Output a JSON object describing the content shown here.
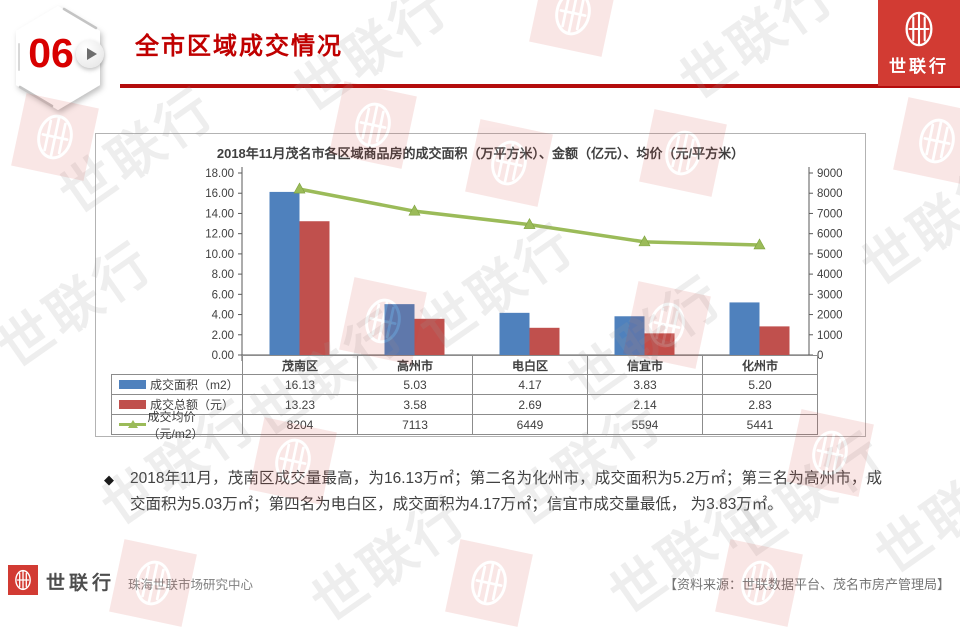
{
  "slide": {
    "number": "06",
    "title": "全市区域成交情况"
  },
  "brand": {
    "name": "世联行",
    "logo_color": "#d23b33"
  },
  "watermark": {
    "text": "世联行"
  },
  "chart_data": {
    "type": "bar",
    "subtype": "combo-bar-line",
    "title": "2018年11月茂名市各区域商品房的成交面积（万平方米）、金额（亿元）、均价（元/平方米）",
    "categories": [
      "茂南区",
      "高州市",
      "电白区",
      "信宜市",
      "化州市"
    ],
    "series": [
      {
        "name": "成交面积（m2）",
        "type": "bar",
        "axis": "left",
        "color": "#4f81bd",
        "decimals": 2,
        "values": [
          16.13,
          5.03,
          4.17,
          3.83,
          5.2
        ]
      },
      {
        "name": "成交总额（元）",
        "type": "bar",
        "axis": "left",
        "color": "#c0504d",
        "decimals": 2,
        "values": [
          13.23,
          3.58,
          2.69,
          2.14,
          2.83
        ]
      },
      {
        "name": "成交均价（元/m2）",
        "type": "line",
        "axis": "right",
        "color": "#9bbb59",
        "decimals": 0,
        "values": [
          8204,
          7113,
          6449,
          5594,
          5441
        ]
      }
    ],
    "left_axis": {
      "min": 0,
      "max": 18,
      "step": 2,
      "decimals": 2
    },
    "right_axis": {
      "min": 0,
      "max": 9000,
      "step": 1000,
      "decimals": 0
    },
    "grid": false,
    "legend_position": "table-left"
  },
  "commentary": {
    "bullet": "◆",
    "text": "2018年11月，茂南区成交量最高，为16.13万㎡；第二名为化州市，成交面积为5.2万㎡；第三名为高州市，成交面积为5.03万㎡；第四名为电白区，成交面积为4.17万㎡；信宜市成交量最低， 为3.83万㎡。"
  },
  "footer": {
    "brand": "世联行",
    "center_name": "珠海世联市场研究中心",
    "source": "【资料来源：世联数据平台、茂名市房产管理局】"
  }
}
